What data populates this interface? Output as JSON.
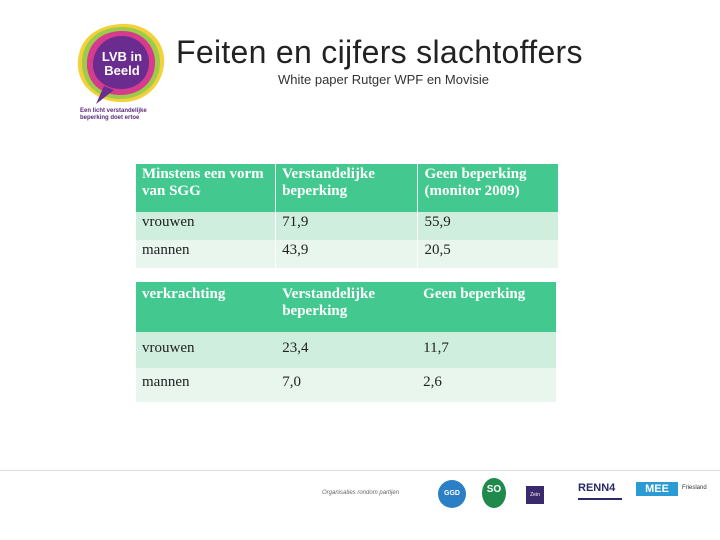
{
  "logo": {
    "text": "LVB in Beeld",
    "tagline": "Een licht verstandelijke beperking doet ertoe",
    "colors": {
      "magenta": "#d63b8e",
      "purple": "#6b2c8f",
      "green": "#9ccd4a",
      "yellow": "#f4d13a"
    }
  },
  "title": "Feiten en cijfers slachtoffers",
  "subtitle": "White paper Rutger WPF en Movisie",
  "table1": {
    "headers": [
      "Minstens een vorm van SGG",
      "Verstandelijke beperking",
      "Geen beperking (monitor 2009)"
    ],
    "rows": [
      [
        "vrouwen",
        "71,9",
        "55,9"
      ],
      [
        "mannen",
        "43,9",
        "20,5"
      ]
    ]
  },
  "table2": {
    "headers": [
      "verkrachting",
      "Verstandelijke beperking",
      "Geen beperking"
    ],
    "rows": [
      [
        "vrouwen",
        "23,4",
        "11,7"
      ],
      [
        "mannen",
        "7,0",
        "2,6"
      ]
    ]
  },
  "footer": {
    "tagline": "Organisaties rondom partijen",
    "logos": [
      "GGD",
      "SO",
      "Zein",
      "RENN4",
      "MEE",
      "Friesland"
    ]
  },
  "colors": {
    "header_green": "#43c98f",
    "row_light_green": "#cfeedd",
    "row_pale_green": "#e9f6ee"
  }
}
